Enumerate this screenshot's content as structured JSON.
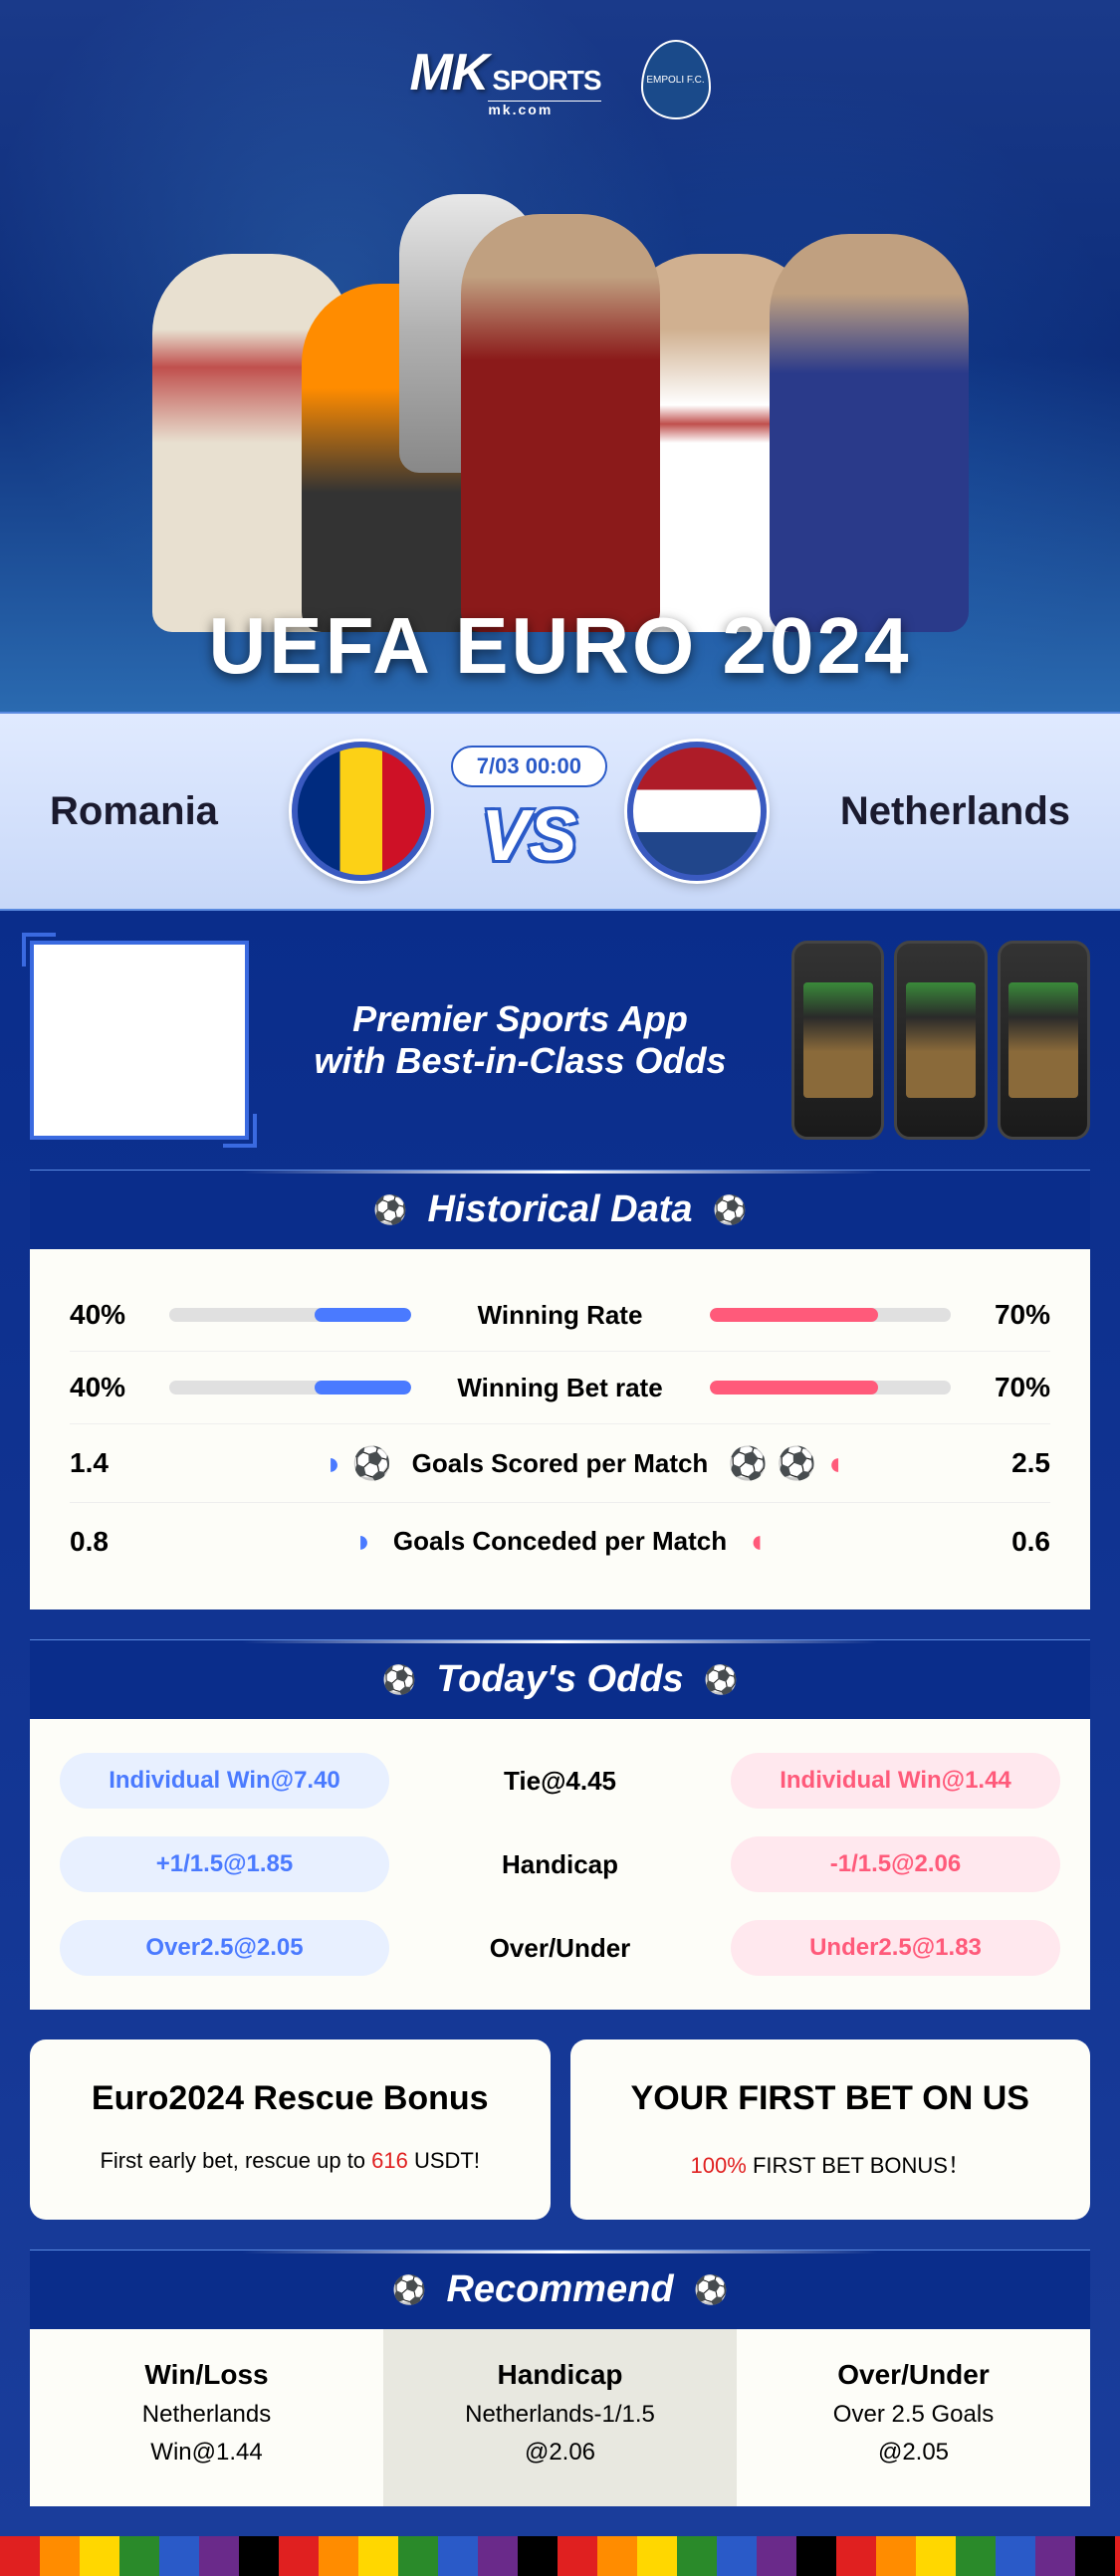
{
  "brand": {
    "logo_mk": "MK",
    "logo_sports": "SPORTS",
    "logo_url": "mk.com",
    "club_badge": "EMPOLI F.C."
  },
  "hero": {
    "title": "UEFA EURO 2024"
  },
  "match": {
    "team_left": "Romania",
    "team_right": "Netherlands",
    "date": "7/03 00:00",
    "vs": "VS"
  },
  "promo": {
    "line1": "Premier Sports App",
    "line2": "with Best-in-Class Odds"
  },
  "historical": {
    "title": "Historical Data",
    "rows": [
      {
        "label": "Winning Rate",
        "left_val": "40%",
        "right_val": "70%",
        "left_pct": 40,
        "right_pct": 70,
        "type": "bar"
      },
      {
        "label": "Winning Bet rate",
        "left_val": "40%",
        "right_val": "70%",
        "left_pct": 40,
        "right_pct": 70,
        "type": "bar"
      },
      {
        "label": "Goals Scored per Match",
        "left_val": "1.4",
        "right_val": "2.5",
        "left_balls": "◗ ⚽",
        "right_balls": "⚽ ⚽ ◖",
        "type": "balls"
      },
      {
        "label": "Goals Conceded per Match",
        "left_val": "0.8",
        "right_val": "0.6",
        "left_balls": "◗",
        "right_balls": "◖",
        "type": "balls"
      }
    ]
  },
  "odds": {
    "title": "Today's Odds",
    "rows": [
      {
        "left": "Individual Win@7.40",
        "center": "Tie@4.45",
        "right": "Individual Win@1.44"
      },
      {
        "left": "+1/1.5@1.85",
        "center": "Handicap",
        "right": "-1/1.5@2.06"
      },
      {
        "left": "Over2.5@2.05",
        "center": "Over/Under",
        "right": "Under2.5@1.83"
      }
    ]
  },
  "bonus": {
    "left": {
      "title": "Euro2024 Rescue Bonus",
      "sub_pre": "First early bet, rescue up to ",
      "sub_val": "616",
      "sub_post": " USDT!"
    },
    "right": {
      "title": "YOUR FIRST BET ON US",
      "sub_val": "100%",
      "sub_post": " FIRST BET BONUS！"
    }
  },
  "recommend": {
    "title": "Recommend",
    "cols": [
      {
        "title": "Win/Loss",
        "line1": "Netherlands",
        "line2": "Win@1.44"
      },
      {
        "title": "Handicap",
        "line1": "Netherlands-1/1.5",
        "line2": "@2.06"
      },
      {
        "title": "Over/Under",
        "line1": "Over 2.5 Goals",
        "line2": "@2.05"
      }
    ]
  },
  "colors": {
    "bg_primary": "#0a2d8b",
    "accent_blue": "#4a7aff",
    "accent_pink": "#ff5a7a",
    "panel_bg": "#fdfdf8"
  }
}
